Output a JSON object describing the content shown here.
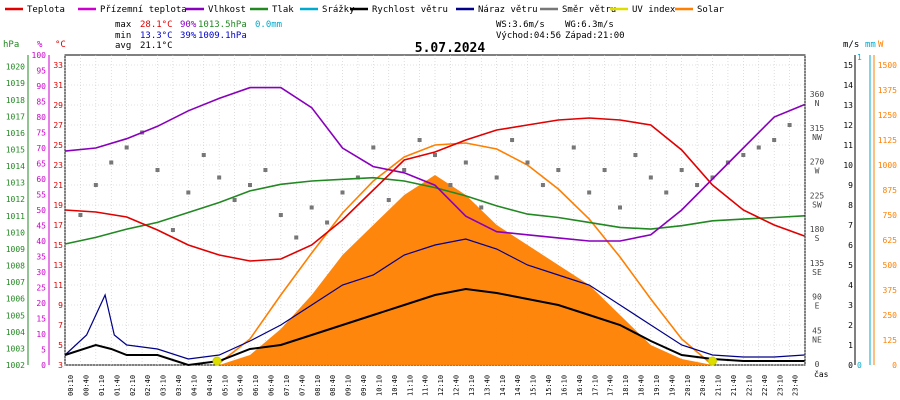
{
  "chart_data": {
    "type": "line",
    "title": "5.07.2024",
    "colors": {
      "temperature": "#e00000",
      "feels_like": "#cc00cc",
      "humidity": "#8800bb",
      "pressure": "#228822",
      "rain": "#00aacc",
      "wind_speed": "#000000",
      "wind_gust": "#000088",
      "wind_dir": "#777777",
      "uv": "#dddd00",
      "solar": "#ff7f00",
      "solar_fill": "#ff8000",
      "grid": "#c8c8c8"
    },
    "legend": [
      {
        "key": "temperature",
        "label": "Teplota"
      },
      {
        "key": "feels_like",
        "label": "Přízemní teplota"
      },
      {
        "key": "humidity",
        "label": "Vlhkost"
      },
      {
        "key": "pressure",
        "label": "Tlak"
      },
      {
        "key": "rain",
        "label": "Srážky"
      },
      {
        "key": "wind_speed",
        "label": "Rychlost větru"
      },
      {
        "key": "wind_gust",
        "label": "Náraz větru"
      },
      {
        "key": "wind_dir",
        "label": "Směr větru"
      },
      {
        "key": "uv",
        "label": "UV index"
      },
      {
        "key": "solar",
        "label": "Solar"
      }
    ],
    "stats": {
      "max": {
        "label": "max",
        "temp": "28.1°C",
        "hum": "90%",
        "press": "1013.5hPa",
        "rain": "0.0mm"
      },
      "min": {
        "label": "min",
        "temp": "13.3°C",
        "hum": "39%",
        "press": "1009.1hPa"
      },
      "avg": {
        "label": "avg",
        "temp": "21.1°C"
      },
      "ws": "WS:3.6m/s",
      "wg": "WG:6.3m/s",
      "sunrise": "Východ:04:56",
      "sunset": "Západ:21:00"
    },
    "axes": {
      "pressure": {
        "unit": "hPa",
        "ticks": [
          1002,
          1003,
          1004,
          1005,
          1006,
          1007,
          1008,
          1009,
          1010,
          1011,
          1012,
          1013,
          1014,
          1015,
          1016,
          1017,
          1018,
          1019,
          1020
        ]
      },
      "humidity": {
        "unit": "%",
        "ticks": [
          0,
          5,
          10,
          15,
          20,
          25,
          30,
          35,
          40,
          45,
          50,
          55,
          60,
          65,
          70,
          75,
          80,
          85,
          90,
          95,
          100
        ]
      },
      "temperature": {
        "unit": "°C",
        "ticks": [
          3,
          5,
          7,
          9,
          11,
          13,
          15,
          17,
          19,
          21,
          23,
          25,
          27,
          29,
          31,
          33
        ]
      },
      "wind_dir": {
        "ticks": [
          {
            "deg": 0,
            "label": "0"
          },
          {
            "deg": 45,
            "label": "45",
            "compass": "NE"
          },
          {
            "deg": 90,
            "label": "90",
            "compass": "E"
          },
          {
            "deg": 135,
            "label": "135",
            "compass": "SE"
          },
          {
            "deg": 180,
            "label": "180",
            "compass": "S"
          },
          {
            "deg": 225,
            "label": "225",
            "compass": "SW"
          },
          {
            "deg": 270,
            "label": "270",
            "compass": "W"
          },
          {
            "deg": 315,
            "label": "315",
            "compass": "NW"
          },
          {
            "deg": 360,
            "label": "360",
            "compass": "N"
          }
        ]
      },
      "wind_ms": {
        "unit": "m/s",
        "ticks": [
          0,
          1,
          2,
          3,
          4,
          5,
          6,
          7,
          8,
          9,
          10,
          11,
          12,
          13,
          14,
          15
        ]
      },
      "rain_mm": {
        "unit": "mm",
        "ticks": [
          0,
          1
        ]
      },
      "solar_w": {
        "unit": "W",
        "ticks": [
          0,
          125,
          250,
          375,
          500,
          625,
          750,
          875,
          1000,
          1125,
          1250,
          1375,
          1500
        ]
      },
      "x_label": "čas",
      "time_labels": [
        "00:10",
        "00:40",
        "01:10",
        "01:40",
        "02:10",
        "02:40",
        "03:10",
        "03:40",
        "04:10",
        "04:40",
        "05:10",
        "05:40",
        "06:10",
        "06:40",
        "07:10",
        "07:40",
        "08:10",
        "08:40",
        "09:10",
        "09:40",
        "10:10",
        "10:40",
        "11:10",
        "11:40",
        "12:10",
        "12:40",
        "13:10",
        "13:40",
        "14:10",
        "14:40",
        "15:10",
        "15:40",
        "16:10",
        "16:40",
        "17:10",
        "17:40",
        "18:10",
        "18:40",
        "19:10",
        "19:40",
        "20:10",
        "20:40",
        "21:10",
        "21:40",
        "22:10",
        "22:40",
        "23:10",
        "23:40"
      ]
    },
    "series": {
      "temperature": [
        [
          0,
          18.5
        ],
        [
          1,
          18.3
        ],
        [
          2,
          17.8
        ],
        [
          3,
          16.5
        ],
        [
          4,
          15.0
        ],
        [
          5,
          14.0
        ],
        [
          6,
          13.4
        ],
        [
          7,
          13.6
        ],
        [
          8,
          15.0
        ],
        [
          9,
          17.5
        ],
        [
          10,
          20.5
        ],
        [
          11,
          23.5
        ],
        [
          12,
          24.3
        ],
        [
          13,
          25.5
        ],
        [
          14,
          26.5
        ],
        [
          15,
          27.0
        ],
        [
          16,
          27.5
        ],
        [
          17,
          27.7
        ],
        [
          18,
          27.5
        ],
        [
          19,
          27.0
        ],
        [
          20,
          24.5
        ],
        [
          21,
          21.0
        ],
        [
          22,
          18.5
        ],
        [
          23,
          17.0
        ],
        [
          23.98,
          15.9
        ]
      ],
      "humidity": [
        [
          0,
          69
        ],
        [
          1,
          70
        ],
        [
          2,
          73
        ],
        [
          3,
          77
        ],
        [
          4,
          82
        ],
        [
          5,
          86
        ],
        [
          6,
          89.5
        ],
        [
          7,
          89.5
        ],
        [
          8,
          83
        ],
        [
          9,
          70
        ],
        [
          10,
          64
        ],
        [
          11,
          62
        ],
        [
          12,
          58
        ],
        [
          13,
          48
        ],
        [
          14,
          43
        ],
        [
          15,
          42
        ],
        [
          16,
          41
        ],
        [
          17,
          40
        ],
        [
          18,
          40
        ],
        [
          19,
          42
        ],
        [
          20,
          50
        ],
        [
          21,
          60
        ],
        [
          22,
          70
        ],
        [
          23,
          80
        ],
        [
          23.98,
          84
        ]
      ],
      "pressure": [
        [
          0,
          1009.3
        ],
        [
          1,
          1009.7
        ],
        [
          2,
          1010.2
        ],
        [
          3,
          1010.6
        ],
        [
          4,
          1011.2
        ],
        [
          5,
          1011.8
        ],
        [
          6,
          1012.5
        ],
        [
          7,
          1012.9
        ],
        [
          8,
          1013.1
        ],
        [
          9,
          1013.2
        ],
        [
          10,
          1013.3
        ],
        [
          11,
          1013.1
        ],
        [
          12,
          1012.7
        ],
        [
          13,
          1012.2
        ],
        [
          14,
          1011.6
        ],
        [
          15,
          1011.1
        ],
        [
          16,
          1010.9
        ],
        [
          17,
          1010.6
        ],
        [
          18,
          1010.3
        ],
        [
          19,
          1010.2
        ],
        [
          20,
          1010.4
        ],
        [
          21,
          1010.7
        ],
        [
          22,
          1010.8
        ],
        [
          23,
          1010.9
        ],
        [
          23.98,
          1011.0
        ]
      ],
      "wind_speed": [
        [
          0,
          0.5
        ],
        [
          1,
          1.0
        ],
        [
          1.5,
          0.8
        ],
        [
          2,
          0.5
        ],
        [
          3,
          0.5
        ],
        [
          4,
          0
        ],
        [
          5,
          0.2
        ],
        [
          6,
          0.8
        ],
        [
          7,
          1.0
        ],
        [
          8,
          1.5
        ],
        [
          9,
          2.0
        ],
        [
          10,
          2.5
        ],
        [
          11,
          3.0
        ],
        [
          12,
          3.5
        ],
        [
          13,
          3.8
        ],
        [
          14,
          3.6
        ],
        [
          15,
          3.3
        ],
        [
          16,
          3.0
        ],
        [
          17,
          2.5
        ],
        [
          18,
          2.0
        ],
        [
          19,
          1.2
        ],
        [
          20,
          0.5
        ],
        [
          21,
          0.3
        ],
        [
          22,
          0.2
        ],
        [
          23,
          0.2
        ],
        [
          23.98,
          0.2
        ]
      ],
      "wind_gust": [
        [
          0,
          0.5
        ],
        [
          0.7,
          1.5
        ],
        [
          1.3,
          3.5
        ],
        [
          1.6,
          1.5
        ],
        [
          2,
          1.0
        ],
        [
          3,
          0.8
        ],
        [
          4,
          0.3
        ],
        [
          5,
          0.5
        ],
        [
          6,
          1.2
        ],
        [
          7,
          2.0
        ],
        [
          8,
          3.0
        ],
        [
          9,
          4.0
        ],
        [
          10,
          4.5
        ],
        [
          11,
          5.5
        ],
        [
          12,
          6.0
        ],
        [
          13,
          6.3
        ],
        [
          14,
          5.8
        ],
        [
          15,
          5.0
        ],
        [
          16,
          4.5
        ],
        [
          17,
          4.0
        ],
        [
          18,
          3.0
        ],
        [
          19,
          2.0
        ],
        [
          20,
          1.0
        ],
        [
          21,
          0.5
        ],
        [
          22,
          0.4
        ],
        [
          23,
          0.4
        ],
        [
          23.98,
          0.5
        ]
      ],
      "solar_curve": [
        [
          4.93,
          0
        ],
        [
          6,
          130
        ],
        [
          7,
          350
        ],
        [
          8,
          560
        ],
        [
          9,
          760
        ],
        [
          10,
          920
        ],
        [
          11,
          1040
        ],
        [
          12,
          1100
        ],
        [
          13,
          1110
        ],
        [
          14,
          1080
        ],
        [
          15,
          1000
        ],
        [
          16,
          880
        ],
        [
          17,
          730
        ],
        [
          18,
          540
        ],
        [
          19,
          330
        ],
        [
          20,
          130
        ],
        [
          21,
          0
        ]
      ],
      "solar_measured": [
        [
          5,
          0
        ],
        [
          6,
          50
        ],
        [
          7,
          180
        ],
        [
          8,
          350
        ],
        [
          9,
          550
        ],
        [
          10,
          700
        ],
        [
          11,
          850
        ],
        [
          12,
          950
        ],
        [
          13,
          850
        ],
        [
          14,
          700
        ],
        [
          15,
          600
        ],
        [
          16,
          500
        ],
        [
          17,
          400
        ],
        [
          18,
          250
        ],
        [
          19,
          100
        ],
        [
          20,
          30
        ],
        [
          21,
          0
        ]
      ],
      "wind_dir_samples": [
        [
          0.5,
          200
        ],
        [
          1,
          240
        ],
        [
          1.5,
          270
        ],
        [
          2,
          290
        ],
        [
          2.5,
          310
        ],
        [
          3,
          260
        ],
        [
          3.5,
          180
        ],
        [
          4,
          230
        ],
        [
          4.5,
          280
        ],
        [
          5,
          250
        ],
        [
          5.5,
          220
        ],
        [
          6,
          240
        ],
        [
          6.5,
          260
        ],
        [
          7,
          200
        ],
        [
          7.5,
          170
        ],
        [
          8,
          210
        ],
        [
          8.5,
          190
        ],
        [
          9,
          230
        ],
        [
          9.5,
          250
        ],
        [
          10,
          290
        ],
        [
          10.5,
          220
        ],
        [
          11,
          260
        ],
        [
          11.5,
          300
        ],
        [
          12,
          280
        ],
        [
          12.5,
          240
        ],
        [
          13,
          270
        ],
        [
          13.5,
          210
        ],
        [
          14,
          250
        ],
        [
          14.5,
          300
        ],
        [
          15,
          270
        ],
        [
          15.5,
          240
        ],
        [
          16,
          260
        ],
        [
          16.5,
          290
        ],
        [
          17,
          230
        ],
        [
          17.5,
          260
        ],
        [
          18,
          210
        ],
        [
          18.5,
          280
        ],
        [
          19,
          250
        ],
        [
          19.5,
          230
        ],
        [
          20,
          260
        ],
        [
          20.5,
          240
        ],
        [
          21,
          250
        ],
        [
          21.5,
          270
        ],
        [
          22,
          280
        ],
        [
          22.5,
          290
        ],
        [
          23,
          300
        ],
        [
          23.5,
          320
        ]
      ]
    }
  }
}
